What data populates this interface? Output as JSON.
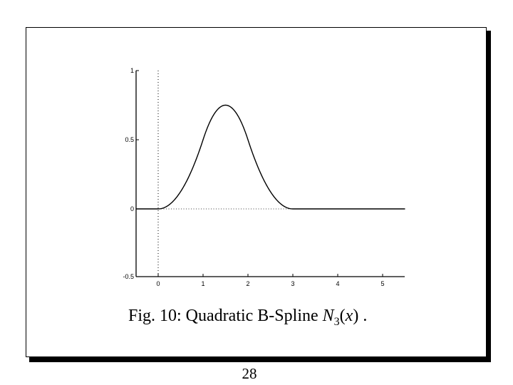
{
  "caption": {
    "prefix": "Fig. 10: Quadratic B-Spline ",
    "func": "N",
    "subscript": "3",
    "open": "(",
    "var": "x",
    "close": ")",
    "suffix": " ."
  },
  "page_number": "28",
  "chart_data": {
    "type": "line",
    "title": "",
    "xlabel": "",
    "ylabel": "",
    "xlim": [
      -0.5,
      5.5
    ],
    "ylim": [
      -0.5,
      1
    ],
    "xticks": [
      "0",
      "1",
      "2",
      "3",
      "4",
      "5"
    ],
    "yticks": [
      "1",
      "0.5",
      "0",
      "-0.5"
    ],
    "grid": false,
    "series": [
      {
        "x": [
          -0.5,
          0,
          0.25,
          0.5,
          0.75,
          1.0,
          1.25,
          1.5,
          1.75,
          2.0,
          2.25,
          2.5,
          2.75,
          3.0,
          3.5,
          4.0,
          4.5,
          5.0,
          5.5
        ],
        "y": [
          0,
          0,
          0.031,
          0.125,
          0.281,
          0.5,
          0.688,
          0.75,
          0.688,
          0.5,
          0.281,
          0.125,
          0.031,
          0,
          0,
          0,
          0,
          0,
          0
        ]
      }
    ]
  }
}
